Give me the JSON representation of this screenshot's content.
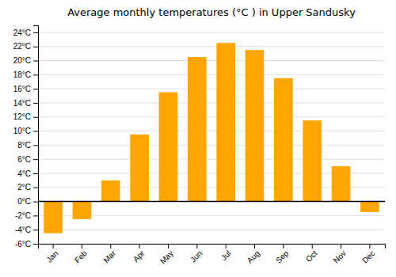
{
  "chart_data": {
    "type": "bar",
    "title": "Average monthly temperatures (°C ) in Upper Sandusky",
    "categories": [
      "Jan",
      "Feb",
      "Mar",
      "Apr",
      "May",
      "Jun",
      "Jul",
      "Aug",
      "Sep",
      "Oct",
      "Nov",
      "Dec"
    ],
    "values": [
      -4.5,
      -2.5,
      3.0,
      9.5,
      15.5,
      20.5,
      22.5,
      21.5,
      17.5,
      11.5,
      5.0,
      -1.5
    ],
    "color": "#FFA500",
    "ylim": [
      -6,
      25
    ],
    "yticks": [
      {
        "value": -6,
        "label": "-6°C"
      },
      {
        "value": -4,
        "label": "-4°C"
      },
      {
        "value": -2,
        "label": "-2°C"
      },
      {
        "value": 0,
        "label": "0°C"
      },
      {
        "value": 2,
        "label": "2°C"
      },
      {
        "value": 4,
        "label": "4°C"
      },
      {
        "value": 6,
        "label": "6°C"
      },
      {
        "value": 8,
        "label": "8°C"
      },
      {
        "value": 10,
        "label": "10°C"
      },
      {
        "value": 12,
        "label": "12°C"
      },
      {
        "value": 14,
        "label": "14°C"
      },
      {
        "value": 16,
        "label": "16°C"
      },
      {
        "value": 18,
        "label": "18°C"
      },
      {
        "value": 20,
        "label": "20°C"
      },
      {
        "value": 22,
        "label": "22°C"
      },
      {
        "value": 24,
        "label": "24°C"
      }
    ],
    "grid": true
  }
}
